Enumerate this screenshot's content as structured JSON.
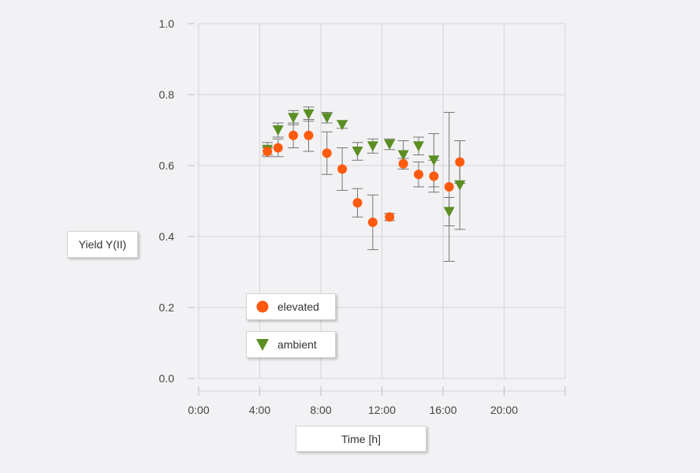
{
  "chart_data": {
    "type": "scatter",
    "xlabel": "Time [h]",
    "ylabel": "Yield Y(II)",
    "xlim": [
      0,
      24
    ],
    "ylim": [
      0,
      1
    ],
    "xticks": [
      "0:00",
      "4:00",
      "8:00",
      "12:00",
      "16:00",
      "20:00"
    ],
    "yticks": [
      "0.0",
      "0.2",
      "0.4",
      "0.6",
      "0.8",
      "1.0"
    ],
    "grid": true,
    "legend_position": "lower-left",
    "series": [
      {
        "name": "elevated",
        "marker": "circle",
        "color": "#ff5a0e",
        "x": [
          4.5,
          5.2,
          6.2,
          7.2,
          8.4,
          9.4,
          10.4,
          11.4,
          12.5,
          13.4,
          14.4,
          15.4,
          16.4,
          17.1
        ],
        "y": [
          0.64,
          0.65,
          0.685,
          0.685,
          0.635,
          0.59,
          0.495,
          0.44,
          0.455,
          0.605,
          0.575,
          0.57,
          0.54,
          0.61
        ],
        "err": [
          0.01,
          0.025,
          0.035,
          0.045,
          0.06,
          0.06,
          0.04,
          0.077,
          0.01,
          0.015,
          0.035,
          0.045,
          0.21,
          0.06
        ]
      },
      {
        "name": "ambient",
        "marker": "triangle-down",
        "color": "#5b8e23",
        "x": [
          4.5,
          5.2,
          6.2,
          7.2,
          8.4,
          9.4,
          10.4,
          11.4,
          12.5,
          13.4,
          14.4,
          15.4,
          16.4,
          17.1
        ],
        "y": [
          0.645,
          0.7,
          0.735,
          0.745,
          0.735,
          0.715,
          0.64,
          0.655,
          0.66,
          0.63,
          0.655,
          0.615,
          0.47,
          0.545
        ],
        "err": [
          0.02,
          0.02,
          0.02,
          0.02,
          0.015,
          0.01,
          0.025,
          0.02,
          0.015,
          0.04,
          0.025,
          0.075,
          0.04,
          0.125
        ]
      }
    ]
  }
}
